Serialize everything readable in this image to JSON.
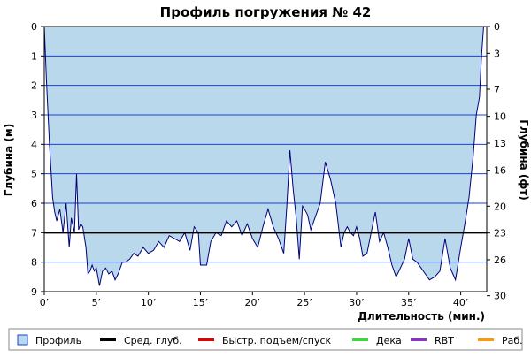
{
  "chart_data": {
    "type": "area",
    "title": "Профиль погружения № 42",
    "xlabel": "Длительность (мин.)",
    "ylabel_left": "Глубина (м)",
    "ylabel_right": "Глубина (фт)",
    "xlim": [
      0,
      42.5
    ],
    "ylim": [
      0,
      9
    ],
    "y_inverted": true,
    "grid": true,
    "x_ticks": [
      {
        "value": 0,
        "label": "0’"
      },
      {
        "value": 5,
        "label": "5’"
      },
      {
        "value": 10,
        "label": "10’"
      },
      {
        "value": 15,
        "label": "15’"
      },
      {
        "value": 20,
        "label": "20’"
      },
      {
        "value": 25,
        "label": "25’"
      },
      {
        "value": 30,
        "label": "30’"
      },
      {
        "value": 35,
        "label": "35’"
      },
      {
        "value": 40,
        "label": "40’"
      }
    ],
    "y_ticks_left": [
      "0",
      "1",
      "2",
      "3",
      "4",
      "5",
      "6",
      "7",
      "8",
      "9"
    ],
    "y_ticks_right": [
      {
        "value": 0,
        "label": "0"
      },
      {
        "value": 0.91,
        "label": "3"
      },
      {
        "value": 2.13,
        "label": "7"
      },
      {
        "value": 3.05,
        "label": "10"
      },
      {
        "value": 3.96,
        "label": "13"
      },
      {
        "value": 4.88,
        "label": "16"
      },
      {
        "value": 6.1,
        "label": "20"
      },
      {
        "value": 7.01,
        "label": "23"
      },
      {
        "value": 7.92,
        "label": "26"
      },
      {
        "value": 9.14,
        "label": "30"
      }
    ],
    "avg_depth": 7.0,
    "series": [
      {
        "name": "Профиль",
        "x": [
          0,
          0.2,
          0.5,
          0.8,
          1.0,
          1.2,
          1.5,
          1.8,
          2.1,
          2.4,
          2.6,
          2.9,
          3.1,
          3.3,
          3.5,
          3.7,
          4.0,
          4.2,
          4.4,
          4.6,
          4.8,
          5.0,
          5.3,
          5.6,
          5.9,
          6.2,
          6.5,
          6.8,
          7.1,
          7.5,
          7.8,
          8.2,
          8.6,
          9.0,
          9.5,
          10.0,
          10.5,
          11.0,
          11.5,
          12.0,
          12.5,
          13.0,
          13.5,
          14.0,
          14.4,
          14.8,
          15.0,
          15.3,
          15.6,
          16.0,
          16.5,
          17.0,
          17.5,
          18.0,
          18.5,
          19.0,
          19.5,
          20.0,
          20.5,
          21.0,
          21.5,
          22.0,
          22.5,
          23.0,
          23.3,
          23.6,
          23.9,
          24.2,
          24.5,
          24.8,
          25.0,
          25.3,
          25.6,
          26.0,
          26.5,
          27.0,
          27.5,
          28.0,
          28.5,
          28.8,
          29.1,
          29.4,
          29.7,
          30.0,
          30.3,
          30.6,
          31.0,
          31.4,
          31.8,
          32.2,
          32.6,
          33.0,
          33.4,
          33.8,
          34.2,
          34.6,
          35.0,
          35.4,
          35.8,
          36.2,
          36.6,
          37.0,
          37.5,
          38.0,
          38.5,
          39.0,
          39.5,
          40.0,
          40.4,
          40.8,
          41.2,
          41.5,
          41.8,
          42.0,
          42.2,
          42.4
        ],
        "values": [
          0,
          1.8,
          4.0,
          5.8,
          6.3,
          6.6,
          6.2,
          7.0,
          6.0,
          7.5,
          6.5,
          7.0,
          5.0,
          6.9,
          6.7,
          6.8,
          7.5,
          8.4,
          8.3,
          8.1,
          8.3,
          8.2,
          8.8,
          8.3,
          8.2,
          8.4,
          8.3,
          8.6,
          8.4,
          8.0,
          8.0,
          7.9,
          7.7,
          7.8,
          7.5,
          7.7,
          7.6,
          7.3,
          7.5,
          7.1,
          7.2,
          7.3,
          7.0,
          7.6,
          6.8,
          7.0,
          8.1,
          8.1,
          8.1,
          7.3,
          7.0,
          7.1,
          6.6,
          6.8,
          6.6,
          7.1,
          6.7,
          7.2,
          7.5,
          6.8,
          6.2,
          6.8,
          7.2,
          7.7,
          6.1,
          4.2,
          5.5,
          6.5,
          7.9,
          6.1,
          6.2,
          6.4,
          6.9,
          6.5,
          6.0,
          4.6,
          5.2,
          6.0,
          7.5,
          7.0,
          6.8,
          7.0,
          7.1,
          6.8,
          7.2,
          7.8,
          7.7,
          7.0,
          6.3,
          7.3,
          7.0,
          7.5,
          8.1,
          8.5,
          8.2,
          7.9,
          7.2,
          7.9,
          8.0,
          8.2,
          8.4,
          8.6,
          8.5,
          8.3,
          7.2,
          8.2,
          8.6,
          7.5,
          6.7,
          5.8,
          4.4,
          3.0,
          2.4,
          1.0,
          0,
          0
        ]
      }
    ],
    "legend": [
      {
        "name": "Профиль",
        "color": "#b9d8ec",
        "kind": "box"
      },
      {
        "name": "Сред. глуб.",
        "color": "#000000",
        "kind": "line"
      },
      {
        "name": "Быстр. подъем/спуск",
        "color": "#e40000",
        "kind": "line"
      },
      {
        "name": "Дека",
        "color": "#33dd33",
        "kind": "line"
      },
      {
        "name": "RBT",
        "color": "#8833cc",
        "kind": "line"
      },
      {
        "name": "Раб.",
        "color": "#ff9900",
        "kind": "line"
      }
    ],
    "legend_position": "bottom",
    "colors": {
      "fill": "#b9d8ec",
      "profile_line": "#00007a",
      "grid": "#1a3fd6",
      "avg_line": "#000000"
    }
  }
}
